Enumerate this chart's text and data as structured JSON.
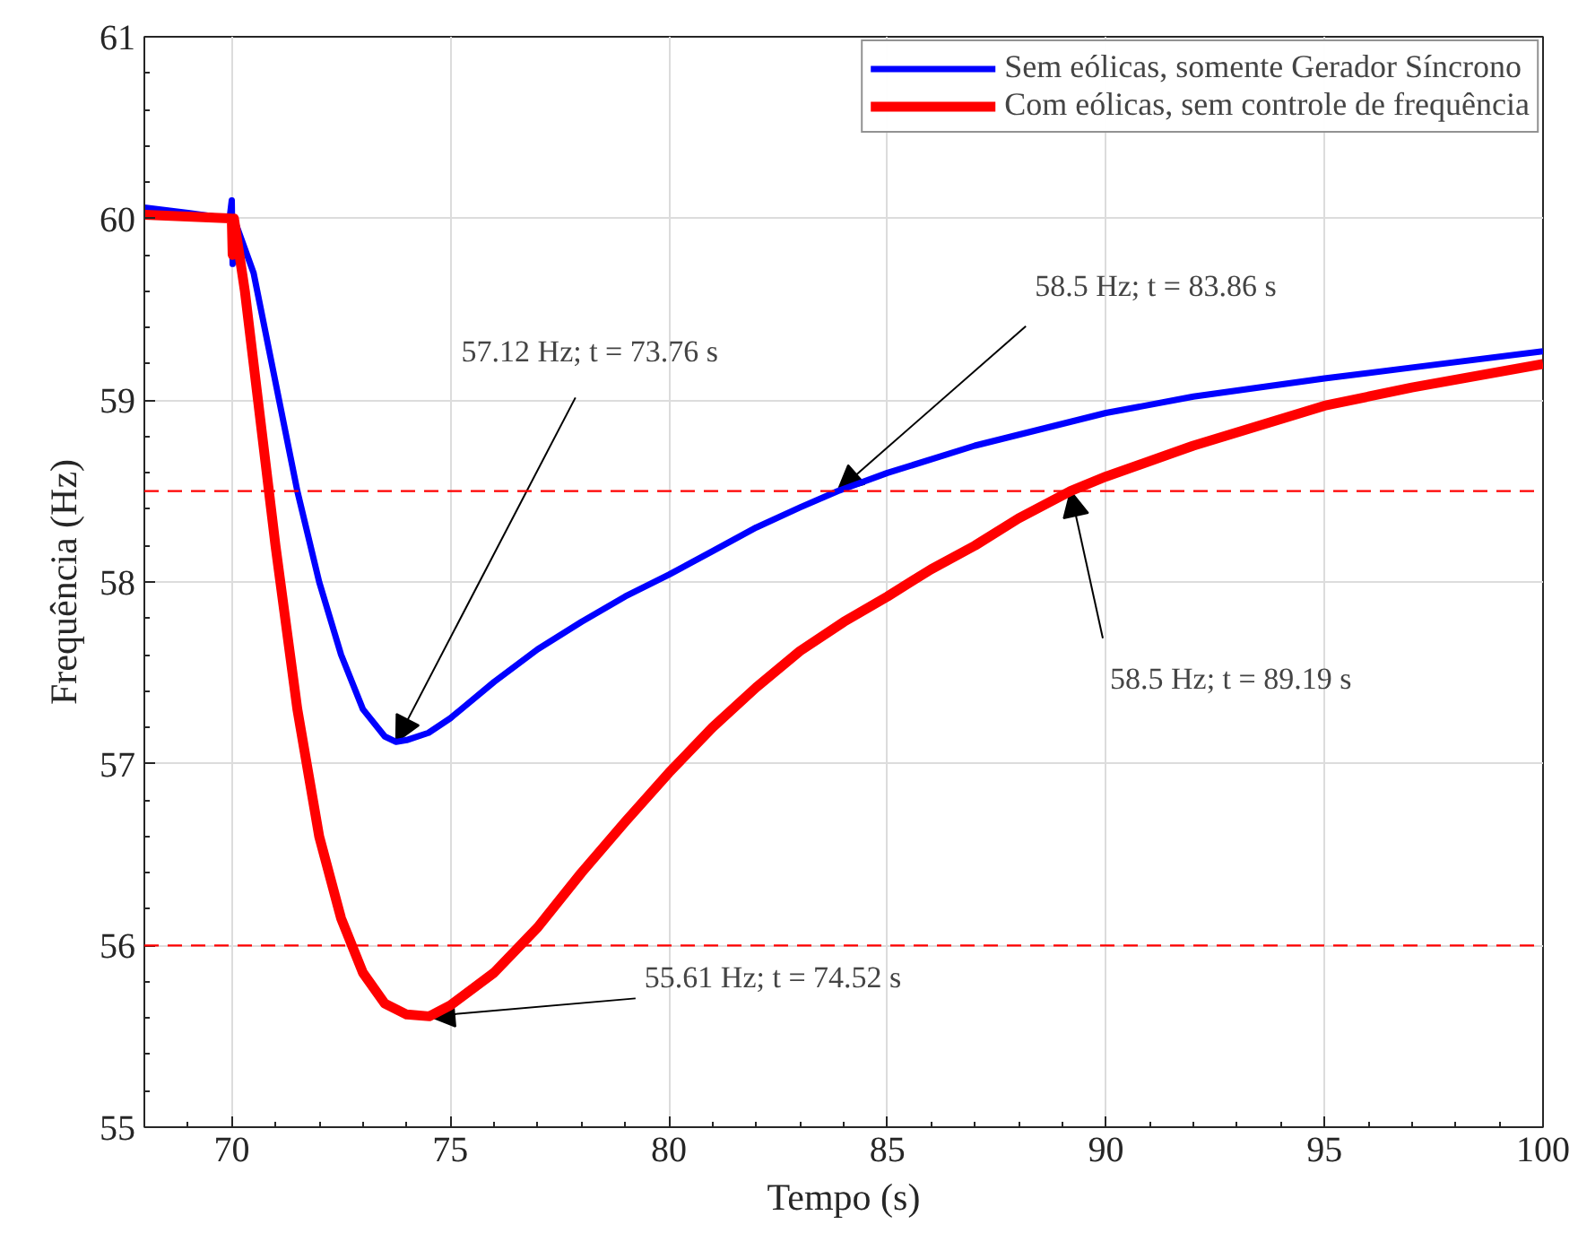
{
  "chart_data": {
    "type": "line",
    "xlabel": "Tempo (s)",
    "ylabel": "Frequência (Hz)",
    "xlim": [
      68,
      100
    ],
    "ylim": [
      55,
      61
    ],
    "xticks": [
      70,
      75,
      80,
      85,
      90,
      95,
      100
    ],
    "yticks": [
      55,
      56,
      57,
      58,
      59,
      60,
      61
    ],
    "grid": true,
    "legend": "top right",
    "line_style": "solid",
    "marker": "none",
    "series": [
      {
        "name": "Sem eólicas, somente Gerador Síncrono",
        "color": "#0000ff",
        "x": [
          68,
          69,
          69.95,
          70.0,
          70.02,
          70.05,
          70.5,
          71,
          71.5,
          72,
          72.5,
          73,
          73.5,
          73.76,
          74,
          74.5,
          75,
          76,
          77,
          78,
          79,
          80,
          81,
          82,
          83,
          83.86,
          85,
          87,
          90,
          92,
          95,
          97,
          100
        ],
        "values": [
          60.06,
          60.03,
          60.0,
          60.1,
          59.75,
          60.0,
          59.7,
          59.1,
          58.5,
          58.0,
          57.6,
          57.3,
          57.15,
          57.12,
          57.13,
          57.17,
          57.25,
          57.45,
          57.63,
          57.78,
          57.92,
          58.04,
          58.17,
          58.3,
          58.41,
          58.5,
          58.6,
          58.75,
          58.93,
          59.02,
          59.12,
          59.18,
          59.27
        ]
      },
      {
        "name": "Com eólicas, sem controle de frequência",
        "color": "#ff0000",
        "x": [
          68,
          70,
          70.02,
          70.05,
          70.3,
          70.5,
          71,
          71.5,
          72,
          72.5,
          73,
          73.5,
          74,
          74.52,
          75,
          76,
          77,
          78,
          79,
          80,
          81,
          82,
          83,
          84,
          85,
          86,
          87,
          88,
          89.19,
          90,
          92,
          95,
          97,
          100
        ],
        "values": [
          60.02,
          60.0,
          59.8,
          60.0,
          59.6,
          59.2,
          58.2,
          57.3,
          56.6,
          56.15,
          55.85,
          55.68,
          55.62,
          55.61,
          55.67,
          55.85,
          56.1,
          56.4,
          56.68,
          56.95,
          57.2,
          57.42,
          57.62,
          57.78,
          57.92,
          58.07,
          58.2,
          58.35,
          58.5,
          58.58,
          58.75,
          58.97,
          59.07,
          59.2
        ]
      }
    ],
    "ref_lines": [
      {
        "axis": "y",
        "value": 58.5,
        "color": "#ff0000",
        "line_style": "dashed"
      },
      {
        "axis": "y",
        "value": 56.0,
        "color": "#ff0000",
        "line_style": "dashed"
      }
    ],
    "annotations": [
      {
        "text": "57.12 Hz; t = 73.76 s",
        "x": 73.76,
        "y": 57.12
      },
      {
        "text": "55.61 Hz; t = 74.52 s",
        "x": 74.52,
        "y": 55.61
      },
      {
        "text": "58.5 Hz; t = 83.86 s",
        "x": 83.86,
        "y": 58.5
      },
      {
        "text": "58.5 Hz; t = 89.19 s",
        "x": 89.19,
        "y": 58.5
      }
    ]
  }
}
